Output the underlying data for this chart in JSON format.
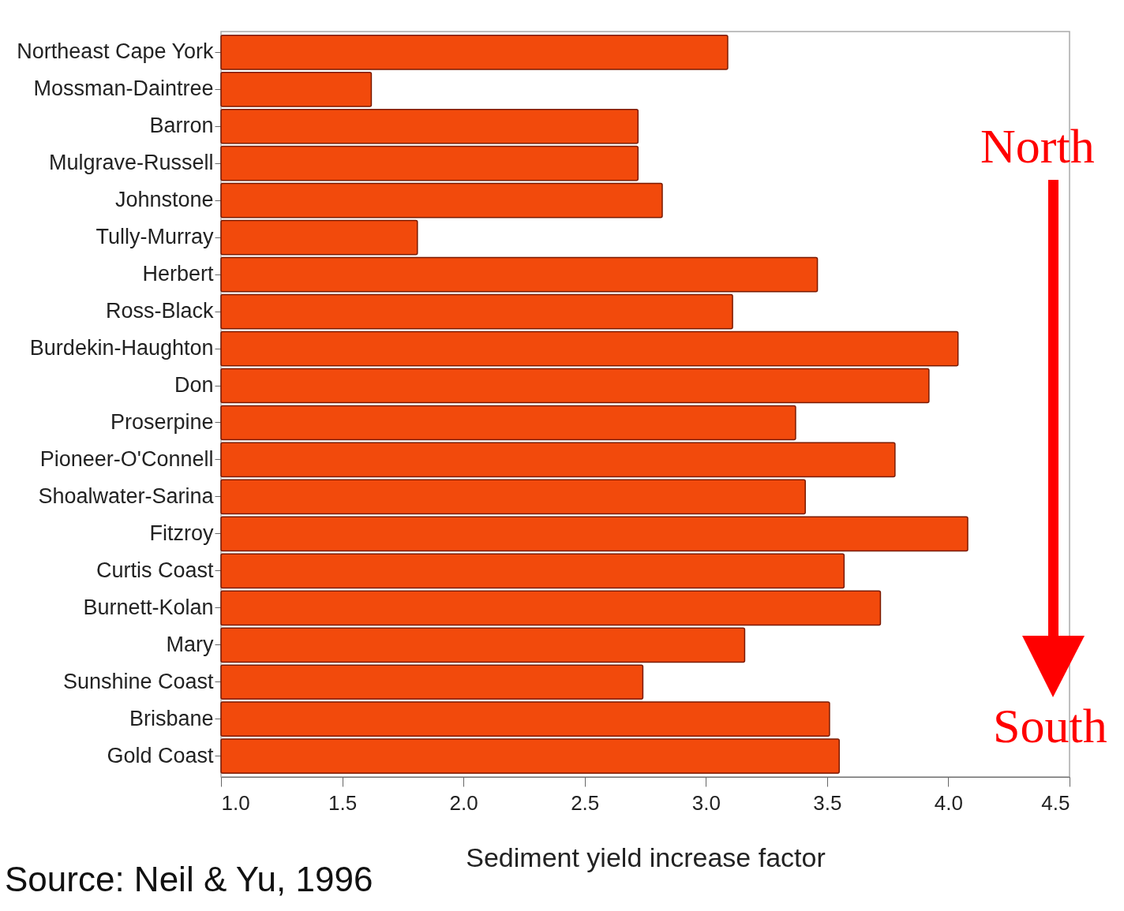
{
  "chart_data": {
    "type": "bar",
    "orientation": "horizontal",
    "xlabel": "Sediment yield increase factor",
    "categories": [
      "Northeast Cape York",
      "Mossman-Daintree",
      "Barron",
      "Mulgrave-Russell",
      "Johnstone",
      "Tully-Murray",
      "Herbert",
      "Ross-Black",
      "Burdekin-Haughton",
      "Don",
      "Proserpine",
      "Pioneer-O'Connell",
      "Shoalwater-Sarina",
      "Fitzroy",
      "Curtis Coast",
      "Burnett-Kolan",
      "Mary",
      "Sunshine Coast",
      "Brisbane",
      "Gold Coast"
    ],
    "values": [
      3.09,
      1.62,
      2.72,
      2.72,
      2.82,
      1.81,
      3.46,
      3.11,
      4.04,
      3.92,
      3.37,
      3.78,
      3.41,
      4.08,
      3.57,
      3.72,
      3.16,
      2.74,
      3.51,
      3.55
    ],
    "color": "#f24a0c",
    "xlim": [
      1,
      4.5
    ],
    "xticks": [
      {
        "value": 1,
        "label": "1.0"
      },
      {
        "value": 1.5,
        "label": "1.5"
      },
      {
        "value": 2,
        "label": "2.0"
      },
      {
        "value": 2.5,
        "label": "2.5"
      },
      {
        "value": 3,
        "label": "3.0"
      },
      {
        "value": 3.5,
        "label": "3.5"
      },
      {
        "value": 4,
        "label": "4.0"
      },
      {
        "value": 4.5,
        "label": "4.5"
      }
    ],
    "grid": false,
    "annotations": [
      "North",
      "South",
      "Source: Neil & Yu, 1996"
    ]
  }
}
